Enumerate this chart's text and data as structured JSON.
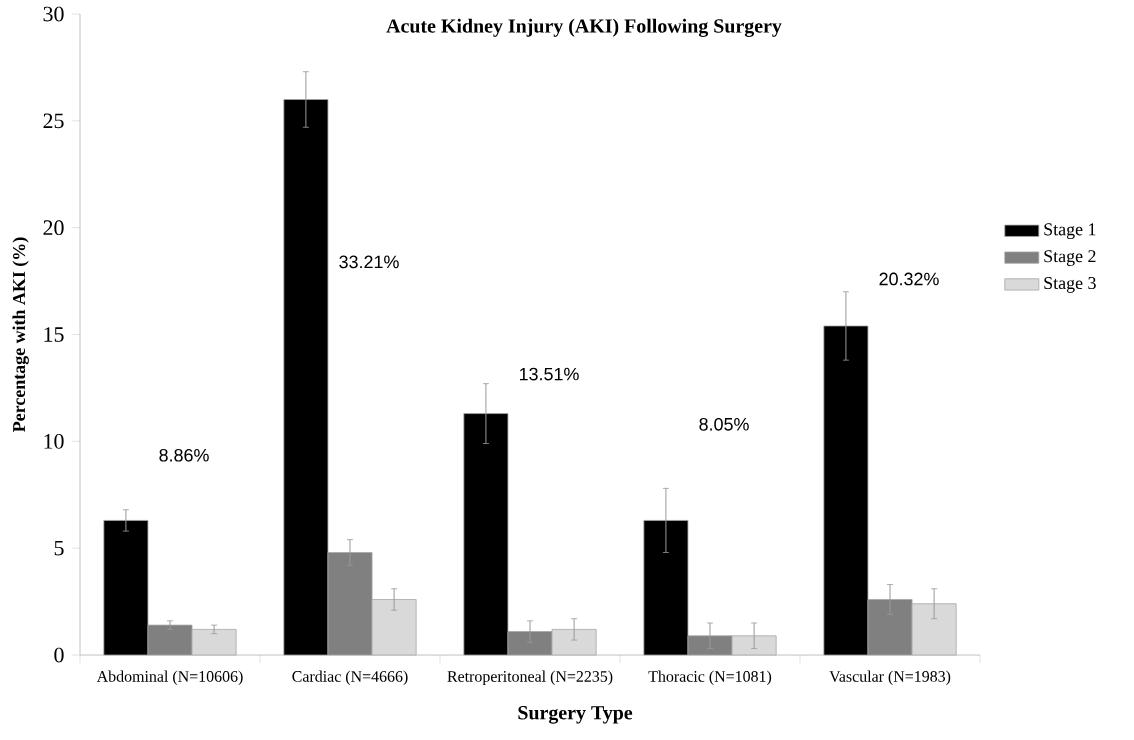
{
  "chart_data": {
    "type": "bar",
    "title": "Acute Kidney Injury (AKI) Following Surgery",
    "xlabel": "Surgery Type",
    "ylabel": "Percentage with AKI (%)",
    "categories": [
      "Abdominal (N=10606)",
      "Cardiac (N=4666)",
      "Retroperitoneal (N=2235)",
      "Thoracic (N=1081)",
      "Vascular (N=1983)"
    ],
    "series": [
      {
        "name": "Stage 1",
        "color": "#000000",
        "values": [
          6.3,
          26.0,
          11.3,
          6.3,
          15.4
        ],
        "errors": [
          0.5,
          1.3,
          1.4,
          1.5,
          1.6
        ]
      },
      {
        "name": "Stage 2",
        "color": "#808080",
        "values": [
          1.4,
          4.8,
          1.1,
          0.9,
          2.6
        ],
        "errors": [
          0.2,
          0.6,
          0.5,
          0.6,
          0.7
        ]
      },
      {
        "name": "Stage 3",
        "color": "#d9d9d9",
        "values": [
          1.2,
          2.6,
          1.2,
          0.9,
          2.4
        ],
        "errors": [
          0.2,
          0.5,
          0.5,
          0.6,
          0.7
        ]
      }
    ],
    "ylim": [
      0,
      30
    ],
    "yticks": [
      0,
      5,
      10,
      15,
      20,
      25,
      30
    ],
    "legend": "right",
    "annotations": [
      "8.86%",
      "33.21%",
      "13.51%",
      "8.05%",
      "20.32%"
    ]
  }
}
